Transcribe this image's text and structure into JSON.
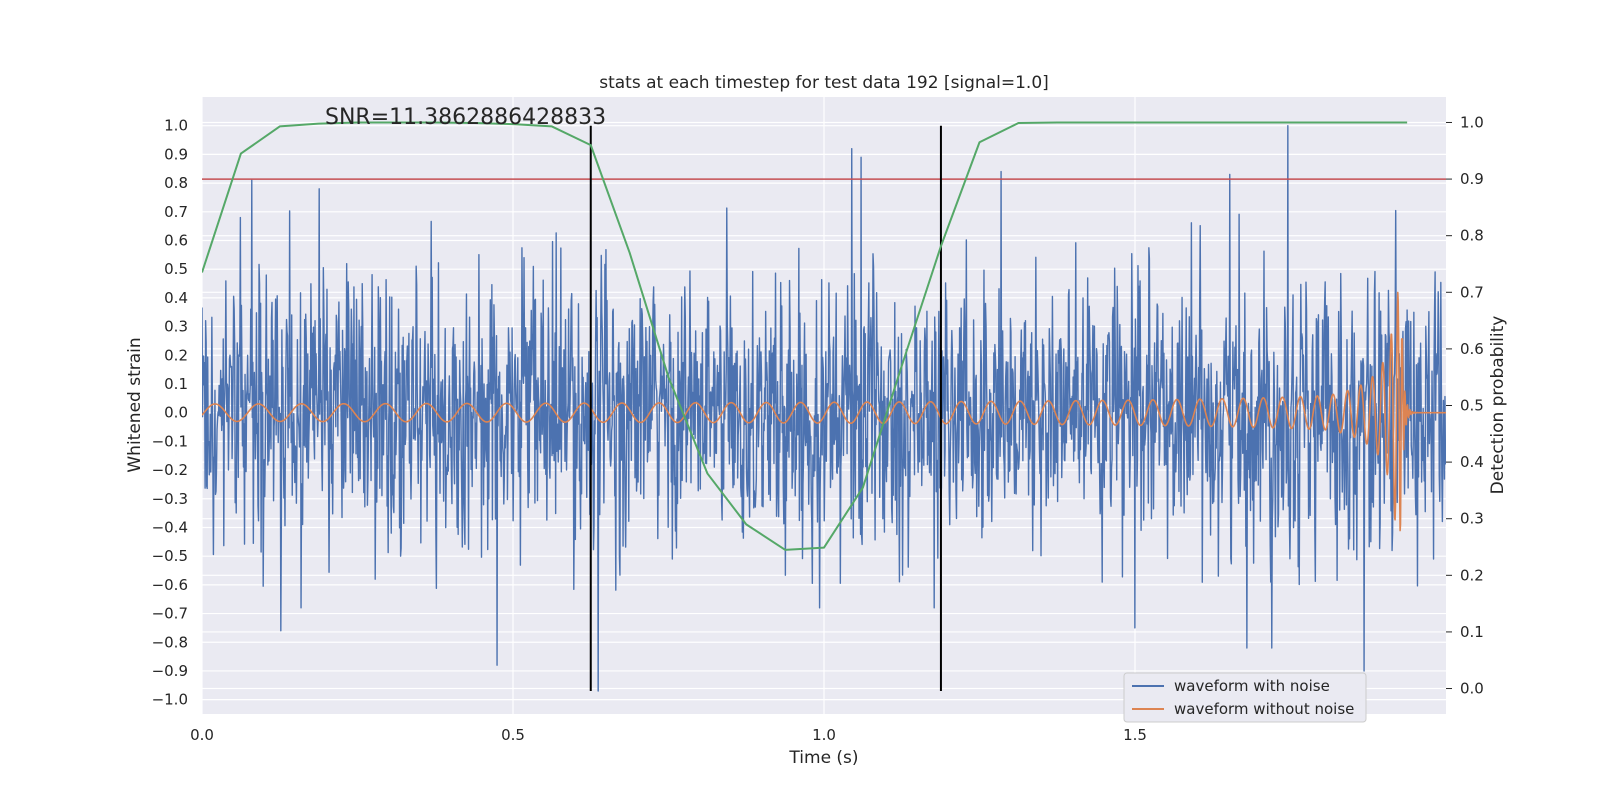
{
  "chart_data": {
    "type": "line",
    "title": "stats at each timestep for test data 192 [signal=1.0]",
    "xlabel": "Time (s)",
    "ylabel": "Whitened strain",
    "y2label": "Detection probability",
    "xlim": [
      0.0,
      2.0
    ],
    "ylim": [
      -1.05,
      1.1
    ],
    "y2lim": [
      -0.045,
      1.045
    ],
    "xticks": [
      0.0,
      0.5,
      1.0,
      1.5
    ],
    "xtick_labels": [
      "0.0",
      "0.5",
      "1.0",
      "1.5"
    ],
    "yticks": [
      1.0,
      0.9,
      0.8,
      0.7,
      0.6,
      0.5,
      0.4,
      0.3,
      0.2,
      0.1,
      0.0,
      -0.1,
      -0.2,
      -0.3,
      -0.4,
      -0.5,
      -0.6,
      -0.7,
      -0.8,
      -0.9,
      -1.0
    ],
    "ytick_labels": [
      "1.0",
      "0.9",
      "0.8",
      "0.7",
      "0.6",
      "0.5",
      "0.4",
      "0.3",
      "0.2",
      "0.1",
      "0.0",
      "−0.1",
      "−0.2",
      "−0.3",
      "−0.4",
      "−0.5",
      "−0.6",
      "−0.7",
      "−0.8",
      "−0.9",
      "−1.0"
    ],
    "y2ticks": [
      1.0,
      0.9,
      0.8,
      0.7,
      0.6,
      0.5,
      0.4,
      0.3,
      0.2,
      0.1,
      0.0
    ],
    "y2tick_labels": [
      "1.0",
      "0.9",
      "0.8",
      "0.7",
      "0.6",
      "0.5",
      "0.4",
      "0.3",
      "0.2",
      "0.1",
      "0.0"
    ],
    "grid": true,
    "annotation": "SNR=11.3862886428833",
    "legend_position": "lower-right",
    "series": [
      {
        "name": "waveform with noise",
        "color": "#4c72b0",
        "axis": "left",
        "description": "dense noisy whitened strain, roughly within ±0.6 with spikes up to 1.0 and down to -0.97",
        "duration": 2.0,
        "amplitude": 0.26,
        "spikes": [
          {
            "x": 0.062,
            "y": 0.68
          },
          {
            "x": 0.08,
            "y": 0.81
          },
          {
            "x": 0.127,
            "y": -0.76
          },
          {
            "x": 0.159,
            "y": -0.68
          },
          {
            "x": 0.188,
            "y": 0.78
          },
          {
            "x": 0.474,
            "y": -0.88
          },
          {
            "x": 0.637,
            "y": -0.97
          },
          {
            "x": 0.993,
            "y": -0.68
          },
          {
            "x": 1.045,
            "y": 0.92
          },
          {
            "x": 1.06,
            "y": 0.89
          },
          {
            "x": 1.177,
            "y": -0.68
          },
          {
            "x": 1.285,
            "y": 0.84
          },
          {
            "x": 1.5,
            "y": -0.75
          },
          {
            "x": 1.652,
            "y": 0.83
          },
          {
            "x": 1.68,
            "y": -0.82
          },
          {
            "x": 1.72,
            "y": -0.82
          },
          {
            "x": 1.746,
            "y": 1.0
          },
          {
            "x": 1.868,
            "y": -0.9
          }
        ]
      },
      {
        "name": "waveform without noise",
        "color": "#dd8452",
        "axis": "left",
        "description": "chirp signal, amplitude ~0.03 growing to ~0.42 near merger at t≈1.93 s",
        "merger_time": 1.93,
        "start_amplitude": 0.03,
        "peak_amplitude": 0.42,
        "start_frequency_hz": 14.0
      },
      {
        "name": "detection probability",
        "color": "#55a868",
        "axis": "right",
        "x": [
          0.0,
          0.0625,
          0.125,
          0.1875,
          0.25,
          0.3125,
          0.375,
          0.4375,
          0.5,
          0.5625,
          0.625,
          0.6875,
          0.75,
          0.8125,
          0.875,
          0.9375,
          1.0,
          1.0625,
          1.125,
          1.1875,
          1.25,
          1.3125,
          1.375,
          1.4375,
          1.5,
          1.5625,
          1.625,
          1.6875,
          1.75,
          1.8125,
          1.875,
          1.9375
        ],
        "values": [
          0.735,
          0.945,
          0.993,
          0.998,
          1.0,
          1.0,
          1.0,
          0.999,
          0.997,
          0.993,
          0.96,
          0.77,
          0.55,
          0.38,
          0.29,
          0.245,
          0.249,
          0.355,
          0.57,
          0.78,
          0.965,
          0.999,
          1.0,
          1.0,
          1.0,
          1.0,
          1.0,
          1.0,
          1.0,
          1.0,
          1.0,
          1.0
        ]
      }
    ],
    "threshold": {
      "axis": "right",
      "value": 0.9,
      "color": "#c44e52"
    },
    "vertical_lines": {
      "x": [
        0.625,
        1.188
      ],
      "y_range": [
        -0.97,
        1.0
      ],
      "color": "#000000"
    }
  }
}
